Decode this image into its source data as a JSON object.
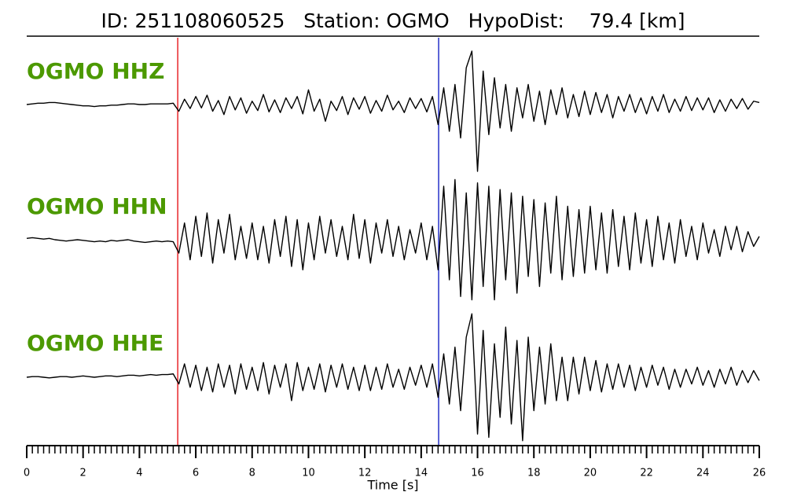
{
  "chart_data": {
    "type": "line",
    "title": "ID: 251108060525   Station: OGMO   HypoDist:    79.4 [km]",
    "xlabel": "Time [s]",
    "xlim": [
      0,
      26
    ],
    "xticks": [
      0,
      2,
      4,
      6,
      8,
      10,
      12,
      14,
      16,
      18,
      20,
      22,
      24,
      26
    ],
    "minor_tick_step": 0.2,
    "ylim": [
      -1,
      1
    ],
    "label_color": "#4c9900",
    "markers": [
      {
        "x": 5.36,
        "color": "#e8262a"
      },
      {
        "x": 14.62,
        "color": "#2430c8"
      }
    ],
    "x": [
      0,
      0.2,
      0.4,
      0.6,
      0.8,
      1,
      1.2,
      1.4,
      1.6,
      1.8,
      2,
      2.2,
      2.4,
      2.6,
      2.8,
      3,
      3.2,
      3.4,
      3.6,
      3.8,
      4,
      4.2,
      4.4,
      4.6,
      4.8,
      5,
      5.2,
      5.4,
      5.6,
      5.8,
      6,
      6.2,
      6.4,
      6.6,
      6.8,
      7,
      7.2,
      7.4,
      7.6,
      7.8,
      8,
      8.2,
      8.4,
      8.6,
      8.8,
      9,
      9.2,
      9.4,
      9.6,
      9.8,
      10,
      10.2,
      10.4,
      10.6,
      10.8,
      11,
      11.2,
      11.4,
      11.6,
      11.8,
      12,
      12.2,
      12.4,
      12.6,
      12.8,
      13,
      13.2,
      13.4,
      13.6,
      13.8,
      14,
      14.2,
      14.4,
      14.6,
      14.8,
      15,
      15.2,
      15.4,
      15.6,
      15.8,
      16,
      16.2,
      16.4,
      16.6,
      16.8,
      17,
      17.2,
      17.4,
      17.6,
      17.8,
      18,
      18.2,
      18.4,
      18.6,
      18.8,
      19,
      19.2,
      19.4,
      19.6,
      19.8,
      20,
      20.2,
      20.4,
      20.6,
      20.8,
      21,
      21.2,
      21.4,
      21.6,
      21.8,
      22,
      22.2,
      22.4,
      22.6,
      22.8,
      23,
      23.2,
      23.4,
      23.6,
      23.8,
      24,
      24.2,
      24.4,
      24.6,
      24.8,
      25,
      25.2,
      25.4,
      25.6,
      25.8,
      26
    ],
    "series": [
      {
        "name": "OGMO HHZ",
        "color": "#000000",
        "values": [
          0,
          0.01,
          0.02,
          0.02,
          0.03,
          0.03,
          0.02,
          0.01,
          0,
          -0.01,
          -0.02,
          -0.02,
          -0.03,
          -0.02,
          -0.02,
          -0.01,
          -0.01,
          0,
          0.01,
          0.01,
          0,
          0,
          0.01,
          0.01,
          0.01,
          0.01,
          0.02,
          -0.1,
          0.08,
          -0.06,
          0.12,
          -0.05,
          0.14,
          -0.1,
          0.06,
          -0.15,
          0.12,
          -0.08,
          0.1,
          -0.13,
          0.05,
          -0.09,
          0.15,
          -0.11,
          0.07,
          -0.12,
          0.1,
          -0.06,
          0.12,
          -0.14,
          0.22,
          -0.1,
          0.08,
          -0.25,
          0.05,
          -0.09,
          0.12,
          -0.15,
          0.1,
          -0.07,
          0.12,
          -0.13,
          0.06,
          -0.1,
          0.14,
          -0.08,
          0.05,
          -0.12,
          0.1,
          -0.06,
          0.09,
          -0.11,
          0.12,
          -0.3,
          0.25,
          -0.4,
          0.3,
          -0.5,
          0.55,
          0.8,
          -1,
          0.5,
          -0.45,
          0.4,
          -0.35,
          0.3,
          -0.4,
          0.25,
          -0.2,
          0.3,
          -0.25,
          0.2,
          -0.3,
          0.22,
          -0.15,
          0.25,
          -0.2,
          0.15,
          -0.18,
          0.2,
          -0.15,
          0.18,
          -0.12,
          0.15,
          -0.2,
          0.12,
          -0.1,
          0.15,
          -0.12,
          0.1,
          -0.14,
          0.12,
          -0.1,
          0.15,
          -0.12,
          0.08,
          -0.1,
          0.12,
          -0.09,
          0.1,
          -0.08,
          0.1,
          -0.12,
          0.07,
          -0.1,
          0.08,
          -0.06,
          0.09,
          -0.07,
          0.05,
          0.03
        ]
      },
      {
        "name": "OGMO HHN",
        "color": "#000000",
        "values": [
          0.02,
          0.03,
          0.02,
          0.01,
          0.02,
          0,
          -0.01,
          -0.02,
          -0.01,
          0,
          -0.01,
          -0.02,
          -0.03,
          -0.02,
          -0.03,
          -0.01,
          -0.02,
          -0.01,
          0,
          -0.02,
          -0.03,
          -0.04,
          -0.03,
          -0.02,
          -0.03,
          -0.02,
          -0.03,
          -0.2,
          0.25,
          -0.3,
          0.35,
          -0.25,
          0.4,
          -0.35,
          0.3,
          -0.2,
          0.38,
          -0.3,
          0.2,
          -0.28,
          0.25,
          -0.3,
          0.2,
          -0.35,
          0.3,
          -0.25,
          0.35,
          -0.4,
          0.3,
          -0.45,
          0.25,
          -0.3,
          0.35,
          -0.2,
          0.3,
          -0.25,
          0.2,
          -0.3,
          0.38,
          -0.28,
          0.3,
          -0.35,
          0.25,
          -0.2,
          0.3,
          -0.25,
          0.2,
          -0.3,
          0.15,
          -0.2,
          0.25,
          -0.3,
          0.2,
          -0.45,
          0.8,
          -0.6,
          0.9,
          -0.85,
          0.7,
          -0.9,
          0.85,
          -0.7,
          0.8,
          -0.9,
          0.75,
          -0.6,
          0.7,
          -0.8,
          0.65,
          -0.55,
          0.6,
          -0.7,
          0.55,
          -0.5,
          0.65,
          -0.6,
          0.5,
          -0.55,
          0.45,
          -0.5,
          0.5,
          -0.45,
          0.4,
          -0.5,
          0.45,
          -0.4,
          0.35,
          -0.45,
          0.4,
          -0.35,
          0.3,
          -0.4,
          0.35,
          -0.3,
          0.25,
          -0.35,
          0.3,
          -0.25,
          0.2,
          -0.3,
          0.25,
          -0.2,
          0.15,
          -0.25,
          0.2,
          -0.15,
          0.2,
          -0.18,
          0.12,
          -0.1,
          0.05
        ]
      },
      {
        "name": "OGMO HHE",
        "color": "#000000",
        "values": [
          0,
          0.01,
          0.01,
          0,
          -0.01,
          0,
          0.01,
          0.01,
          0,
          0.01,
          0.02,
          0.01,
          0,
          0.01,
          0.02,
          0.02,
          0.01,
          0.02,
          0.03,
          0.03,
          0.02,
          0.03,
          0.04,
          0.03,
          0.04,
          0.04,
          0.05,
          -0.1,
          0.2,
          -0.15,
          0.18,
          -0.2,
          0.15,
          -0.22,
          0.2,
          -0.15,
          0.18,
          -0.25,
          0.2,
          -0.18,
          0.15,
          -0.2,
          0.22,
          -0.25,
          0.18,
          -0.15,
          0.2,
          -0.35,
          0.22,
          -0.2,
          0.15,
          -0.18,
          0.2,
          -0.22,
          0.18,
          -0.15,
          0.2,
          -0.18,
          0.15,
          -0.2,
          0.18,
          -0.2,
          0.15,
          -0.18,
          0.2,
          -0.15,
          0.12,
          -0.18,
          0.15,
          -0.12,
          0.18,
          -0.15,
          0.2,
          -0.3,
          0.35,
          -0.4,
          0.45,
          -0.5,
          0.6,
          0.95,
          -0.85,
          0.7,
          -0.9,
          0.5,
          -0.6,
          0.75,
          -0.7,
          0.55,
          -0.95,
          0.6,
          -0.5,
          0.45,
          -0.4,
          0.5,
          -0.35,
          0.3,
          -0.35,
          0.3,
          -0.25,
          0.3,
          -0.2,
          0.25,
          -0.22,
          0.2,
          -0.18,
          0.2,
          -0.15,
          0.18,
          -0.2,
          0.15,
          -0.15,
          0.18,
          -0.12,
          0.15,
          -0.18,
          0.12,
          -0.15,
          0.12,
          -0.1,
          0.15,
          -0.12,
          0.1,
          -0.15,
          0.12,
          -0.1,
          0.15,
          -0.12,
          0.1,
          -0.08,
          0.1,
          -0.05
        ]
      }
    ]
  }
}
